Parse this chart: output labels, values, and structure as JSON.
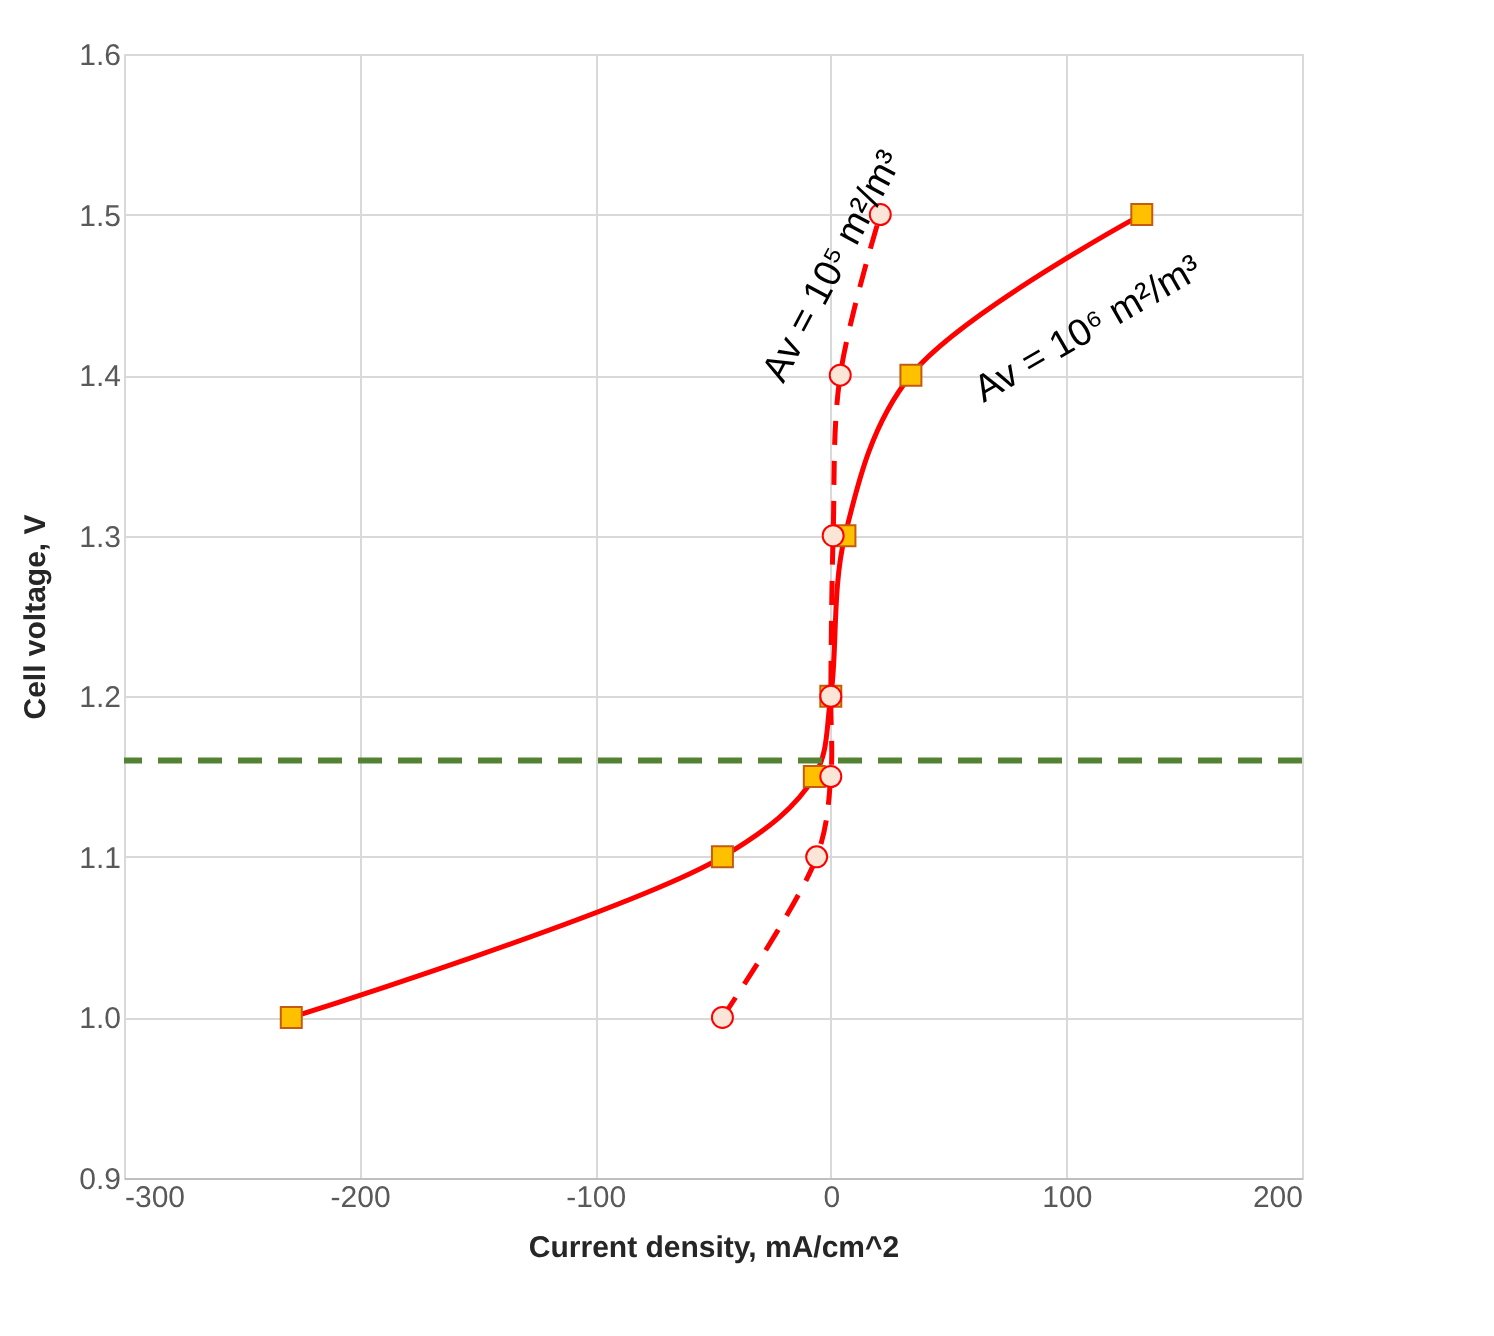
{
  "chart_data": {
    "type": "line",
    "xlabel": "Current density, mA/cm^2",
    "ylabel": "Cell voltage, V",
    "xlim": [
      -300,
      200
    ],
    "xticks": [
      -300,
      -200,
      -100,
      0,
      100,
      200
    ],
    "ylim": [
      0.9,
      1.6
    ],
    "yticks": [
      0.9,
      {
        "value": 1.0,
        "label": "1.0"
      },
      1.1,
      1.2,
      1.3,
      1.4,
      1.5,
      1.6
    ],
    "grid": true,
    "series": [
      {
        "name": "Av = 10⁶ m²/m³",
        "color": "#ff0000",
        "marker": "square",
        "line_style": "solid",
        "x": [
          -229,
          -46,
          -7,
          0,
          6,
          34,
          132
        ],
        "values": [
          1.0,
          1.1,
          1.15,
          1.2,
          1.3,
          1.4,
          1.5
        ]
      },
      {
        "name": "Av = 10⁵ m²/m³",
        "color": "#ff0000",
        "marker": "circle",
        "line_style": "dashed",
        "x": [
          -46,
          -6,
          0,
          0,
          1,
          4,
          21
        ],
        "values": [
          1.0,
          1.1,
          1.15,
          1.2,
          1.3,
          1.4,
          1.5
        ]
      }
    ],
    "ref_lines": [
      {
        "axis": "y",
        "value": 1.16,
        "color": "#548235",
        "line_style": "dashed"
      }
    ]
  }
}
